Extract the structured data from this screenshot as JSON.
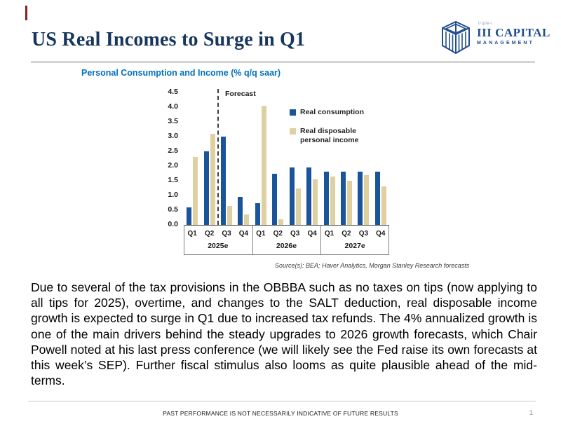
{
  "slide": {
    "title": "US Real Incomes to Surge in Q1",
    "footer": "PAST PERFORMANCE IS NOT NECESSARILY INDICATIVE OF FUTURE RESULTS",
    "page_number": "1"
  },
  "logo": {
    "tagline": "triple-i",
    "name": "III CAPITAL",
    "subname": "MANAGEMENT",
    "color": "#1f4e8c"
  },
  "chart_data": {
    "type": "bar",
    "title": "Personal Consumption and Income (% q/q saar)",
    "source": "Source(s): BEA; Haver Analytics, Morgan Stanley Research forecasts",
    "forecast_label": "Forecast",
    "forecast_after_index": 1,
    "categories": [
      "Q1",
      "Q2",
      "Q3",
      "Q4",
      "Q1",
      "Q2",
      "Q3",
      "Q4",
      "Q1",
      "Q2",
      "Q3",
      "Q4"
    ],
    "year_groups": [
      {
        "label": "2025e",
        "span": 4
      },
      {
        "label": "2026e",
        "span": 4
      },
      {
        "label": "2027e",
        "span": 4
      }
    ],
    "series": [
      {
        "name": "Real consumption",
        "color": "#1a549a",
        "values": [
          0.6,
          2.5,
          3.0,
          0.95,
          0.75,
          1.75,
          1.95,
          1.95,
          1.8,
          1.8,
          1.8,
          1.8
        ]
      },
      {
        "name": "Real disposable personal income",
        "color": "#ded0a0",
        "values": [
          2.3,
          3.1,
          0.65,
          0.35,
          4.05,
          0.2,
          1.25,
          1.55,
          1.65,
          1.5,
          1.7,
          1.3
        ]
      }
    ],
    "ylim": [
      0,
      4.5
    ],
    "ytick_step": 0.5,
    "grid": false,
    "legend_position": "upper right",
    "xlabel": "",
    "ylabel": ""
  },
  "body": {
    "paragraph": "Due to several of the tax provisions in the OBBBA such as no taxes on tips (now applying to all tips for 2025), overtime, and changes to the SALT deduction, real disposable income growth is expected to surge in Q1 due to increased tax refunds. The 4% annualized growth is one of the main drivers behind the steady upgrades to 2026 growth forecasts, which Chair Powell noted at his last press conference (we will likely see the Fed raise its own forecasts at this week’s SEP). Further fiscal stimulus also looms as quite plausible ahead of the mid-terms."
  }
}
